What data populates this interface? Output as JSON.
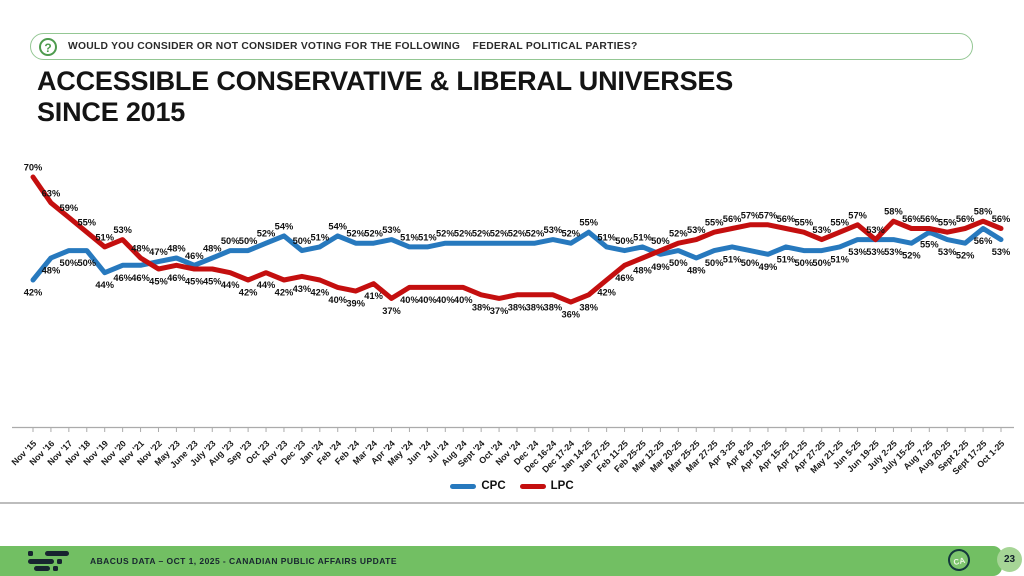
{
  "question_bar": {
    "icon": "?",
    "text": "WOULD YOU CONSIDER OR NOT CONSIDER VOTING FOR THE FOLLOWING    FEDERAL POLITICAL PARTIES?"
  },
  "title": {
    "line1": "ACCESSIBLE CONSERVATIVE & LIBERAL UNIVERSES",
    "line2": "SINCE 2015"
  },
  "chart_data": {
    "type": "line",
    "title": "Accessible Conservative & Liberal Universes since 2015",
    "xlabel": "",
    "ylabel": "",
    "ylim": [
      30,
      75
    ],
    "gridlines": false,
    "legend_position": "bottom",
    "data_label_format": "percent",
    "categories": [
      "Nov '15",
      "Nov '16",
      "Nov '17",
      "Nov '18",
      "Nov '19",
      "Nov '20",
      "Nov '21",
      "Nov '22",
      "May '23",
      "June '23",
      "July '23",
      "Aug '23",
      "Sep '23",
      "Oct '23",
      "Nov '23",
      "Dec '23",
      "Jan '24",
      "Feb '24",
      "Feb '24",
      "Mar '24",
      "Apr '24",
      "May '24",
      "Jun '24",
      "Jul '24",
      "Aug '24",
      "Sept '24",
      "Oct '24",
      "Nov '24",
      "Dec '24",
      "Dec 16-24",
      "Dec 17-24",
      "Jan 14-25",
      "Jan 27-25",
      "Feb 11-25",
      "Feb 25-25",
      "Mar 12-25",
      "Mar 20-25",
      "Mar 25-25",
      "Mar 27-25",
      "Apr 3-25",
      "Apr 8-25",
      "Apr 10-25",
      "Apr 15-25",
      "Apr 21-25",
      "Apr 27-25",
      "May 21-25",
      "Jun 5-25",
      "Jun 19-25",
      "July 2-25",
      "July 15-25",
      "Aug 7-25",
      "Aug 20-25",
      "Sept 2-25",
      "Sept 17-25",
      "Oct 1-25"
    ],
    "series": [
      {
        "name": "CPC",
        "color": "#2779be",
        "values": [
          42,
          48,
          50,
          50,
          44,
          46,
          46,
          47,
          48,
          46,
          48,
          50,
          50,
          52,
          54,
          50,
          51,
          54,
          52,
          52,
          53,
          51,
          51,
          52,
          52,
          52,
          52,
          52,
          52,
          53,
          52,
          55,
          51,
          50,
          51,
          49,
          50,
          48,
          50,
          51,
          50,
          49,
          51,
          50,
          50,
          51,
          53,
          53,
          53,
          52,
          55,
          53,
          52,
          56,
          53
        ]
      },
      {
        "name": "LPC",
        "color": "#c40f0f",
        "values": [
          70,
          63,
          59,
          55,
          51,
          53,
          48,
          45,
          46,
          45,
          45,
          44,
          42,
          44,
          42,
          43,
          42,
          40,
          39,
          41,
          37,
          40,
          40,
          40,
          40,
          38,
          37,
          38,
          38,
          38,
          36,
          38,
          42,
          46,
          48,
          50,
          52,
          53,
          55,
          56,
          57,
          57,
          56,
          55,
          53,
          55,
          57,
          53,
          58,
          56,
          56,
          55,
          56,
          58,
          56
        ]
      }
    ]
  },
  "footer": {
    "text": "ABACUS DATA – OCT 1, 2025 - CANADIAN PUBLIC AFFAIRS UPDATE",
    "ca_monogram": "CA",
    "page_number": "23",
    "bar_color": "#72bf63"
  }
}
